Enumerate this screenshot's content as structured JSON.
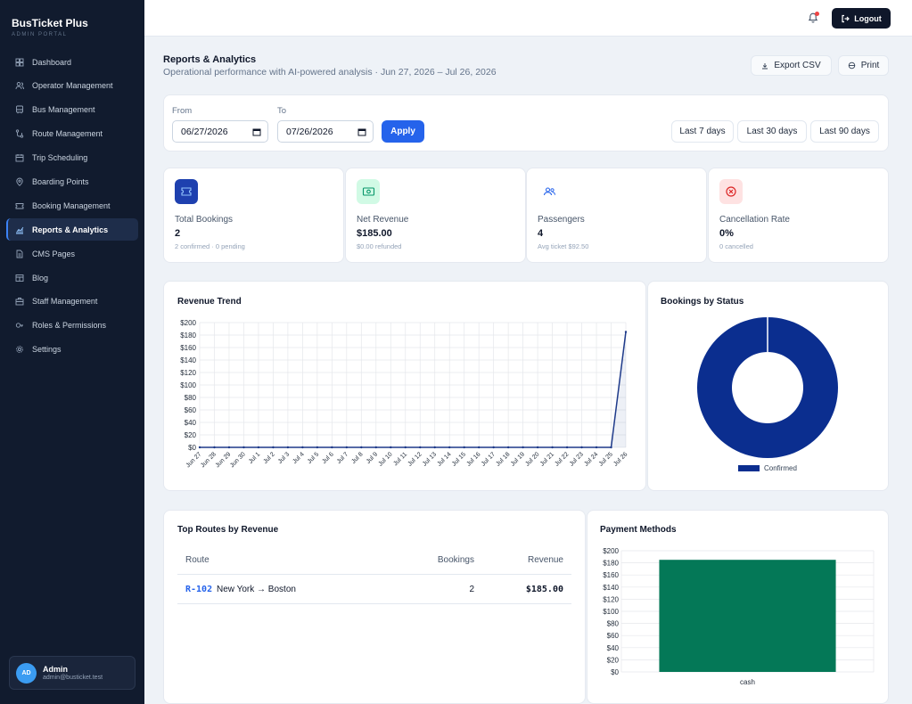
{
  "sidebar": {
    "brand_title": "BusTicket Plus",
    "brand_subtitle": "ADMIN PORTAL",
    "items": [
      {
        "label": "Dashboard",
        "icon": "grid-icon"
      },
      {
        "label": "Operator Management",
        "icon": "users-icon"
      },
      {
        "label": "Bus Management",
        "icon": "bus-icon"
      },
      {
        "label": "Route Management",
        "icon": "route-icon"
      },
      {
        "label": "Trip Scheduling",
        "icon": "calendar-icon"
      },
      {
        "label": "Boarding Points",
        "icon": "map-pin-icon"
      },
      {
        "label": "Booking Management",
        "icon": "ticket-icon"
      },
      {
        "label": "Reports & Analytics",
        "icon": "chart-icon",
        "active": true
      },
      {
        "label": "CMS Pages",
        "icon": "file-icon"
      },
      {
        "label": "Blog",
        "icon": "blog-icon"
      },
      {
        "label": "Staff Management",
        "icon": "briefcase-icon"
      },
      {
        "label": "Roles & Permissions",
        "icon": "key-icon"
      },
      {
        "label": "Settings",
        "icon": "gear-icon"
      }
    ],
    "user": {
      "initials": "AD",
      "name": "Admin",
      "email": "admin@busticket.test"
    }
  },
  "topbar": {
    "logout_label": "Logout",
    "has_notification": true
  },
  "header": {
    "title": "Reports & Analytics",
    "subtitle": "Operational performance with AI-powered analysis · Jun 27, 2026 – Jul 26, 2026",
    "export_label": "Export CSV",
    "print_label": "Print"
  },
  "filters": {
    "from_label": "From",
    "from_value": "06/27/2026",
    "to_label": "To",
    "to_value": "07/26/2026",
    "apply_label": "Apply",
    "ranges": [
      "Last 7 days",
      "Last 30 days",
      "Last 90 days"
    ]
  },
  "stats": [
    {
      "label": "Total Bookings",
      "value": "2",
      "note": "2 confirmed · 0 pending",
      "icon": "ticket-icon",
      "color": "#1e40af"
    },
    {
      "label": "Net Revenue",
      "value": "$185.00",
      "note": "$0.00 refunded",
      "icon": "cash-icon",
      "color": "#059669"
    },
    {
      "label": "Passengers",
      "value": "4",
      "note": "Avg ticket $92.50",
      "icon": "users-icon",
      "color": "#2563eb"
    },
    {
      "label": "Cancellation Rate",
      "value": "0%",
      "note": "0 cancelled",
      "icon": "x-circle-icon",
      "color": "#dc2626"
    }
  ],
  "revenue_trend": {
    "title": "Revenue Trend",
    "chart_data": {
      "type": "line",
      "title": "Revenue Trend",
      "x": [
        "Jun 27",
        "Jun 28",
        "Jun 29",
        "Jun 30",
        "Jul 1",
        "Jul 2",
        "Jul 3",
        "Jul 4",
        "Jul 5",
        "Jul 6",
        "Jul 7",
        "Jul 8",
        "Jul 9",
        "Jul 10",
        "Jul 11",
        "Jul 12",
        "Jul 13",
        "Jul 14",
        "Jul 15",
        "Jul 16",
        "Jul 17",
        "Jul 18",
        "Jul 19",
        "Jul 20",
        "Jul 21",
        "Jul 22",
        "Jul 23",
        "Jul 24",
        "Jul 25",
        "Jul 26"
      ],
      "values": [
        0,
        0,
        0,
        0,
        0,
        0,
        0,
        0,
        0,
        0,
        0,
        0,
        0,
        0,
        0,
        0,
        0,
        0,
        0,
        0,
        0,
        0,
        0,
        0,
        0,
        0,
        0,
        0,
        0,
        185
      ],
      "ylim": [
        0,
        200
      ],
      "yticks": [
        "$0",
        "$20",
        "$40",
        "$60",
        "$80",
        "$100",
        "$120",
        "$140",
        "$160",
        "$180",
        "$200"
      ],
      "color": "#1e3a8a",
      "grid": true
    }
  },
  "bookings_status": {
    "title": "Bookings by Status",
    "chart_data": {
      "type": "pie",
      "categories": [
        "Confirmed"
      ],
      "values": [
        2
      ],
      "colors": [
        "#0b2e8f"
      ],
      "legend": "bottom"
    }
  },
  "top_routes": {
    "title": "Top Routes by Revenue",
    "columns": [
      "Route",
      "Bookings",
      "Revenue"
    ],
    "rows": [
      {
        "code": "R-102",
        "name": "New York → Boston",
        "bookings": "2",
        "revenue": "$185.00"
      }
    ]
  },
  "payment_methods": {
    "title": "Payment Methods",
    "chart_data": {
      "type": "bar",
      "categories": [
        "cash"
      ],
      "values": [
        185
      ],
      "ylim": [
        0,
        200
      ],
      "yticks": [
        "$0",
        "$20",
        "$40",
        "$60",
        "$80",
        "$100",
        "$120",
        "$140",
        "$160",
        "$180",
        "$200"
      ],
      "color": "#047857",
      "grid": true
    }
  }
}
